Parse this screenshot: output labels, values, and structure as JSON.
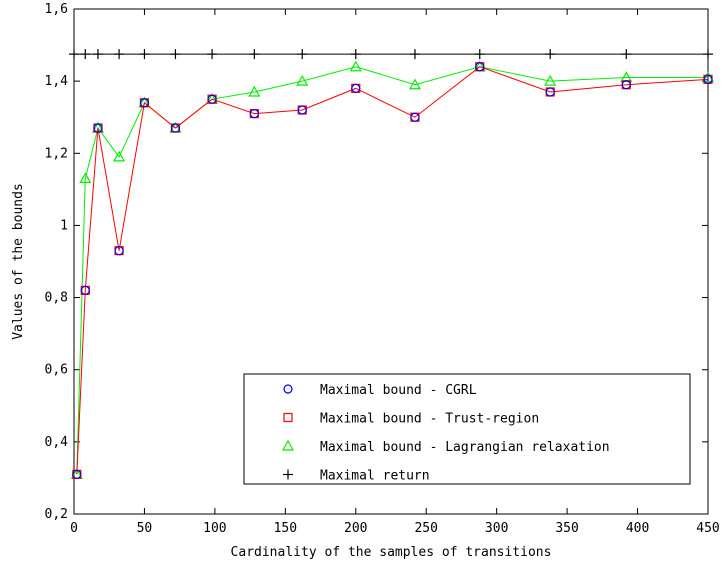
{
  "chart_data": {
    "type": "line",
    "title": "",
    "xlabel": "Cardinality of the samples of transitions",
    "ylabel": "Values of the bounds",
    "xlim": [
      0,
      450
    ],
    "ylim": [
      0.2,
      1.6
    ],
    "xticks": [
      0,
      50,
      100,
      150,
      200,
      250,
      300,
      350,
      400,
      450
    ],
    "yticks": [
      0.2,
      0.4,
      0.6,
      0.8,
      1,
      1.2,
      1.4,
      1.6
    ],
    "xtick_labels": [
      "0",
      "50",
      "100",
      "150",
      "200",
      "250",
      "300",
      "350",
      "400",
      "450"
    ],
    "ytick_labels": [
      "0,2",
      "0,4",
      "0,6",
      "0,8",
      "1",
      "1,2",
      "1,4",
      "1,6"
    ],
    "grid": false,
    "legend_position": "bottom-right",
    "x": [
      2,
      8,
      17,
      32,
      50,
      72,
      98,
      128,
      162,
      200,
      242,
      288,
      338,
      392,
      450
    ],
    "series": [
      {
        "name": "Maximal bound - CGRL",
        "color": "#0000ff",
        "marker": "circle",
        "line": false,
        "values": [
          0.31,
          0.82,
          1.27,
          0.93,
          1.34,
          1.27,
          1.35,
          1.31,
          1.32,
          1.38,
          1.3,
          1.44,
          1.37,
          1.39,
          1.405
        ]
      },
      {
        "name": "Maximal bound - Trust-region",
        "color": "#ff0000",
        "marker": "square",
        "line": true,
        "values": [
          0.31,
          0.82,
          1.27,
          0.93,
          1.34,
          1.27,
          1.35,
          1.31,
          1.32,
          1.38,
          1.3,
          1.44,
          1.37,
          1.39,
          1.405
        ]
      },
      {
        "name": "Maximal bound - Lagrangian relaxation",
        "color": "#00ee00",
        "marker": "triangle",
        "line": true,
        "values": [
          0.31,
          1.13,
          1.27,
          1.19,
          1.34,
          1.27,
          1.35,
          1.37,
          1.4,
          1.44,
          1.39,
          1.44,
          1.4,
          1.41,
          1.41
        ]
      },
      {
        "name": "Maximal return",
        "color": "#000000",
        "marker": "plus",
        "line": true,
        "constant": 1.475,
        "x": [
          0,
          8,
          17,
          32,
          50,
          72,
          98,
          128,
          162,
          200,
          242,
          288,
          338,
          392,
          450
        ]
      }
    ]
  }
}
